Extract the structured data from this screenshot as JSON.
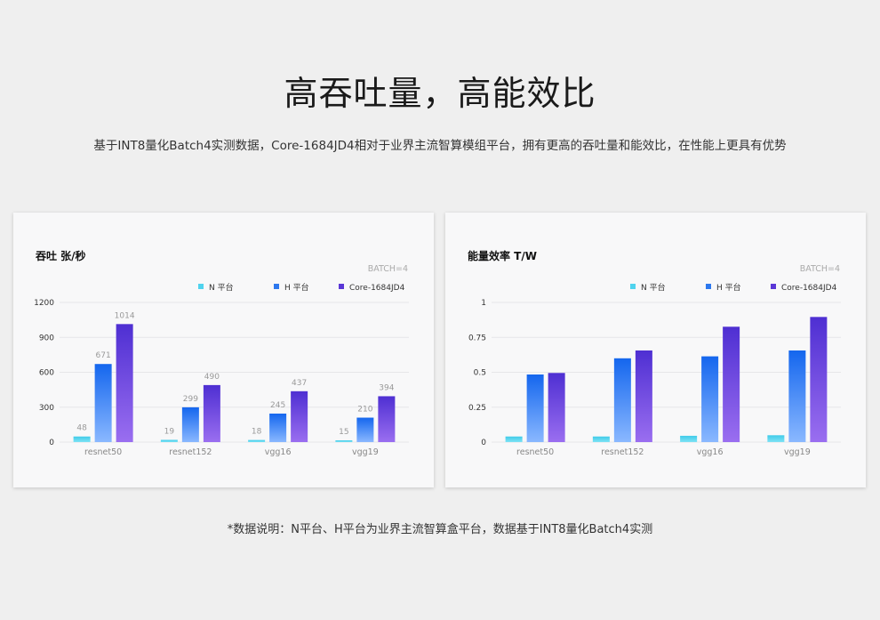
{
  "header": {
    "title": "高吞吐量，高能效比",
    "subtitle": "基于INT8量化Batch4实测数据，Core-1684JD4相对于业界主流智算模组平台，拥有更高的吞吐量和能效比，在性能上更具有优势"
  },
  "footnote": "*数据说明：N平台、H平台为业界主流智算盒平台，数据基于INT8量化Batch4实测",
  "colors": {
    "n": "#4fd3ee",
    "h": "#1d6ff0",
    "core": "#5a37d6"
  },
  "chart_data": [
    {
      "type": "bar",
      "title": "吞吐 张/秒",
      "annotation": "BATCH=4",
      "categories": [
        "resnet50",
        "resnet152",
        "vgg16",
        "vgg19"
      ],
      "ylim": [
        0,
        1200
      ],
      "yticks": [
        "0",
        "300",
        "600",
        "900",
        "1200"
      ],
      "ytick_values": [
        0,
        300,
        600,
        900,
        1200
      ],
      "grid": true,
      "legend_position": "top-right",
      "show_labels": true,
      "series": [
        {
          "name": "N 平台",
          "values": [
            48,
            19,
            18,
            15
          ]
        },
        {
          "name": "H 平台",
          "values": [
            671,
            299,
            245,
            210
          ]
        },
        {
          "name": "Core-1684JD4",
          "values": [
            1014,
            490,
            437,
            394
          ]
        }
      ]
    },
    {
      "type": "bar",
      "title": "能量效率 T/W",
      "annotation": "BATCH=4",
      "categories": [
        "resnet50",
        "resnet152",
        "vgg16",
        "vgg19"
      ],
      "ylim": [
        0,
        1
      ],
      "yticks": [
        "0",
        "0.25",
        "0.5",
        "0.75",
        "1"
      ],
      "ytick_values": [
        0,
        0.25,
        0.5,
        0.75,
        1
      ],
      "grid": true,
      "legend_position": "top-right",
      "show_labels": false,
      "series": [
        {
          "name": "N 平台",
          "values": [
            0.04,
            0.04,
            0.045,
            0.049
          ]
        },
        {
          "name": "H 平台",
          "values": [
            0.484,
            0.6,
            0.614,
            0.656
          ]
        },
        {
          "name": "Core-1684JD4",
          "values": [
            0.495,
            0.656,
            0.826,
            0.896
          ]
        }
      ]
    }
  ]
}
